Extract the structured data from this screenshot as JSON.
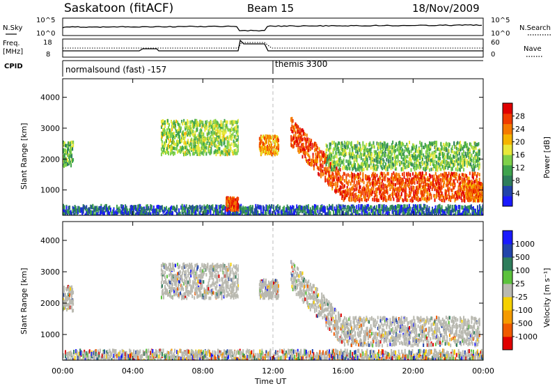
{
  "header": {
    "station": "Saskatoon (fitACF)",
    "beam": "Beam 15",
    "date": "18/Nov/2009"
  },
  "side_labels": {
    "nsky": "N.Sky",
    "nsearch": "N.Search",
    "freq": "Freq.",
    "freq_unit": "[MHz]",
    "nave": "Nave",
    "cpid": "CPID"
  },
  "top_axis_ticks": {
    "nsky_left": [
      "10^5",
      "10^0"
    ],
    "nsearch_right": [
      "10^5",
      "10^0"
    ],
    "freq_left": [
      "18",
      "8"
    ],
    "nave_right": [
      "60",
      "0"
    ]
  },
  "cpid_labels": {
    "first": "normalsound (fast) -157",
    "second": "themis 3300"
  },
  "colors": {
    "power_scale": [
      "#1a1aff",
      "#2244aa",
      "#2e7d5b",
      "#3fa34d",
      "#7fd04a",
      "#e8e83a",
      "#f5b400",
      "#f57a00",
      "#f03c00",
      "#e00000"
    ],
    "velocity_scale": [
      "#1a1aff",
      "#2244aa",
      "#2e7d5b",
      "#5cc23c",
      "#b9b9b0",
      "#f5d000",
      "#f59a00",
      "#f05a00",
      "#e00000"
    ],
    "ground_scatter": "#b9b9b0"
  },
  "chart_data": [
    {
      "type": "heatmap",
      "title": "",
      "xlabel": "Time UT",
      "ylabel": "Slant Range [km]",
      "x_ticks": [
        "00:00",
        "04:00",
        "08:00",
        "12:00",
        "16:00",
        "20:00",
        "00:00"
      ],
      "y_ticks": [
        "1000",
        "2000",
        "3000",
        "4000"
      ],
      "xlim": [
        0,
        24
      ],
      "ylim": [
        180,
        4600
      ],
      "colorbar": {
        "label": "Power [dB]",
        "ticks": [
          "4",
          "8",
          "12",
          "16",
          "20",
          "24",
          "28"
        ],
        "range": [
          0,
          30
        ]
      },
      "scatter_regions": [
        {
          "t": [
            0.0,
            0.6
          ],
          "r": [
            1800,
            2600
          ],
          "level": 12
        },
        {
          "t": [
            5.6,
            10.0
          ],
          "r": [
            2200,
            3300
          ],
          "level": 14
        },
        {
          "t": [
            9.3,
            10.0
          ],
          "r": [
            400,
            800
          ],
          "level": 26
        },
        {
          "t": [
            11.2,
            12.3
          ],
          "r": [
            2200,
            2800
          ],
          "level": 22
        },
        {
          "t": [
            13.0,
            23.8
          ],
          "r": [
            700,
            1800
          ],
          "level": 26
        },
        {
          "t": [
            15.0,
            23.8
          ],
          "r": [
            1700,
            2600
          ],
          "level": 12
        },
        {
          "t": [
            23.0,
            24.0
          ],
          "r": [
            700,
            1300
          ],
          "level": 24
        }
      ]
    },
    {
      "type": "heatmap",
      "title": "",
      "xlabel": "Time UT",
      "ylabel": "Slant Range [km]",
      "x_ticks": [
        "00:00",
        "04:00",
        "08:00",
        "12:00",
        "16:00",
        "20:00",
        "00:00"
      ],
      "y_ticks": [
        "1000",
        "2000",
        "3000",
        "4000"
      ],
      "xlim": [
        0,
        24
      ],
      "ylim": [
        180,
        4600
      ],
      "colorbar": {
        "label": "Velocity [m s⁻¹]",
        "ticks": [
          "1000",
          "500",
          "100",
          "25",
          "-25",
          "-100",
          "-500",
          "-1000"
        ],
        "range": [
          -1200,
          1200
        ]
      },
      "scatter_regions": [
        {
          "t": [
            0.0,
            0.6
          ],
          "r": [
            1800,
            2600
          ],
          "level": "ground"
        },
        {
          "t": [
            5.6,
            10.0
          ],
          "r": [
            2200,
            3300
          ],
          "level": "ground"
        },
        {
          "t": [
            11.2,
            12.3
          ],
          "r": [
            2200,
            2800
          ],
          "level": "ground"
        },
        {
          "t": [
            13.0,
            23.8
          ],
          "r": [
            700,
            2600
          ],
          "level": "ground"
        }
      ]
    }
  ]
}
